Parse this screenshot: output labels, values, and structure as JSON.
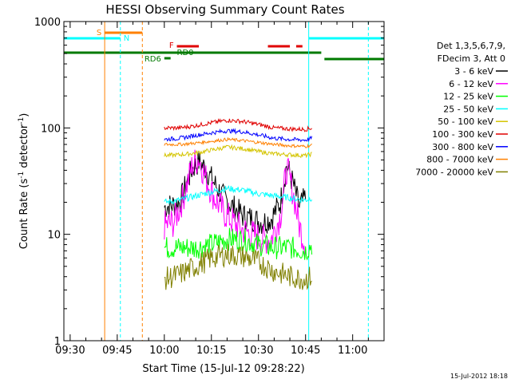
{
  "chart_data": {
    "type": "line",
    "title": "HESSI Observing Summary Count Rates",
    "xlabel": "Start Time (15-Jul-12 09:28:22)",
    "ylabel_main": "Count Rate (s",
    "ylabel_sup1": "-1",
    "ylabel_mid": " detector",
    "ylabel_sup2": "-1",
    "ylabel_end": ")",
    "ylim": [
      1,
      1000
    ],
    "yscale": "log",
    "xlim": [
      "09:28",
      "11:10"
    ],
    "x_ticks": [
      "09:30",
      "09:45",
      "10:00",
      "10:15",
      "10:30",
      "10:45",
      "11:00"
    ],
    "y_ticks": [
      "1",
      "10",
      "100",
      "1000"
    ],
    "legend_header": [
      "Det 1,3,5,6,7,9,",
      "FDecim 3, Att 0"
    ],
    "legend_position": "right",
    "timestamp": "15-Jul-2012 18:18",
    "colors": {
      "black": "#000000",
      "magenta": "#ff00ff",
      "green": "#00ff00",
      "cyan": "#00ffff",
      "yellow": "#d4c400",
      "red": "#e00000",
      "blue": "#0000ff",
      "orange": "#ff8000",
      "olive": "#808000",
      "darkgreen": "#007a00"
    },
    "series": [
      {
        "name": "3 - 6 keV",
        "color": "#000000",
        "x": [
          "10:00",
          "10:03",
          "10:05",
          "10:07",
          "10:09",
          "10:11",
          "10:13",
          "10:16",
          "10:19",
          "10:22",
          "10:25",
          "10:28",
          "10:31",
          "10:34",
          "10:37",
          "10:39",
          "10:41",
          "10:43",
          "10:45"
        ],
        "y": [
          18,
          19,
          20,
          30,
          42,
          48,
          42,
          30,
          22,
          18,
          15,
          14,
          13,
          14,
          20,
          45,
          30,
          18,
          22
        ]
      },
      {
        "name": "6 - 12 keV",
        "color": "#ff00ff",
        "x": [
          "10:00",
          "10:03",
          "10:05",
          "10:07",
          "10:09",
          "10:11",
          "10:13",
          "10:16",
          "10:19",
          "10:22",
          "10:25",
          "10:28",
          "10:31",
          "10:34",
          "10:37",
          "10:39",
          "10:41",
          "10:43",
          "10:45"
        ],
        "y": [
          12,
          13,
          18,
          28,
          45,
          52,
          35,
          22,
          16,
          13,
          11,
          10,
          9,
          9,
          15,
          42,
          25,
          12,
          8
        ]
      },
      {
        "name": "12 - 25 keV",
        "color": "#00ff00",
        "x": [
          "10:00",
          "10:05",
          "10:10",
          "10:15",
          "10:20",
          "10:25",
          "10:30",
          "10:35",
          "10:40",
          "10:45",
          "10:47"
        ],
        "y": [
          7.5,
          7.5,
          7.5,
          8,
          9,
          9,
          8,
          7.5,
          7.5,
          7,
          8
        ]
      },
      {
        "name": "25 - 50 keV",
        "color": "#00ffff",
        "x": [
          "10:00",
          "10:05",
          "10:10",
          "10:15",
          "10:20",
          "10:25",
          "10:30",
          "10:35",
          "10:40",
          "10:45",
          "10:47"
        ],
        "y": [
          20,
          21,
          23,
          25,
          27,
          26,
          24,
          23,
          22,
          21,
          22
        ]
      },
      {
        "name": "50 - 100 keV",
        "color": "#d4c400",
        "x": [
          "10:00",
          "10:05",
          "10:10",
          "10:15",
          "10:20",
          "10:25",
          "10:30",
          "10:35",
          "10:40",
          "10:45",
          "10:47"
        ],
        "y": [
          55,
          56,
          58,
          62,
          66,
          64,
          60,
          57,
          56,
          55,
          57
        ]
      },
      {
        "name": "100 - 300 keV",
        "color": "#e00000",
        "x": [
          "10:00",
          "10:05",
          "10:10",
          "10:15",
          "10:20",
          "10:25",
          "10:30",
          "10:35",
          "10:40",
          "10:45",
          "10:47"
        ],
        "y": [
          100,
          100,
          105,
          112,
          118,
          115,
          108,
          100,
          98,
          97,
          100
        ]
      },
      {
        "name": "300 - 800 keV",
        "color": "#0000ff",
        "x": [
          "10:00",
          "10:05",
          "10:10",
          "10:15",
          "10:20",
          "10:25",
          "10:30",
          "10:35",
          "10:40",
          "10:45",
          "10:47"
        ],
        "y": [
          78,
          80,
          85,
          90,
          94,
          92,
          86,
          80,
          78,
          77,
          80
        ]
      },
      {
        "name": "800 - 7000 keV",
        "color": "#ff8000",
        "x": [
          "10:00",
          "10:05",
          "10:10",
          "10:15",
          "10:20",
          "10:25",
          "10:30",
          "10:35",
          "10:40",
          "10:45",
          "10:47"
        ],
        "y": [
          70,
          70,
          72,
          75,
          78,
          76,
          73,
          70,
          68,
          67,
          69
        ]
      },
      {
        "name": "7000 - 20000 keV",
        "color": "#808000",
        "x": [
          "10:00",
          "10:05",
          "10:10",
          "10:15",
          "10:20",
          "10:25",
          "10:30",
          "10:35",
          "10:40",
          "10:45",
          "10:47"
        ],
        "y": [
          3.8,
          4.2,
          5,
          6,
          6.5,
          6.2,
          5.5,
          4.5,
          4,
          3.8,
          4
        ]
      }
    ],
    "flag_labels": {
      "s": "S",
      "n": "N",
      "f": "F",
      "rd0": "RD0",
      "rd6": "RD6"
    }
  }
}
